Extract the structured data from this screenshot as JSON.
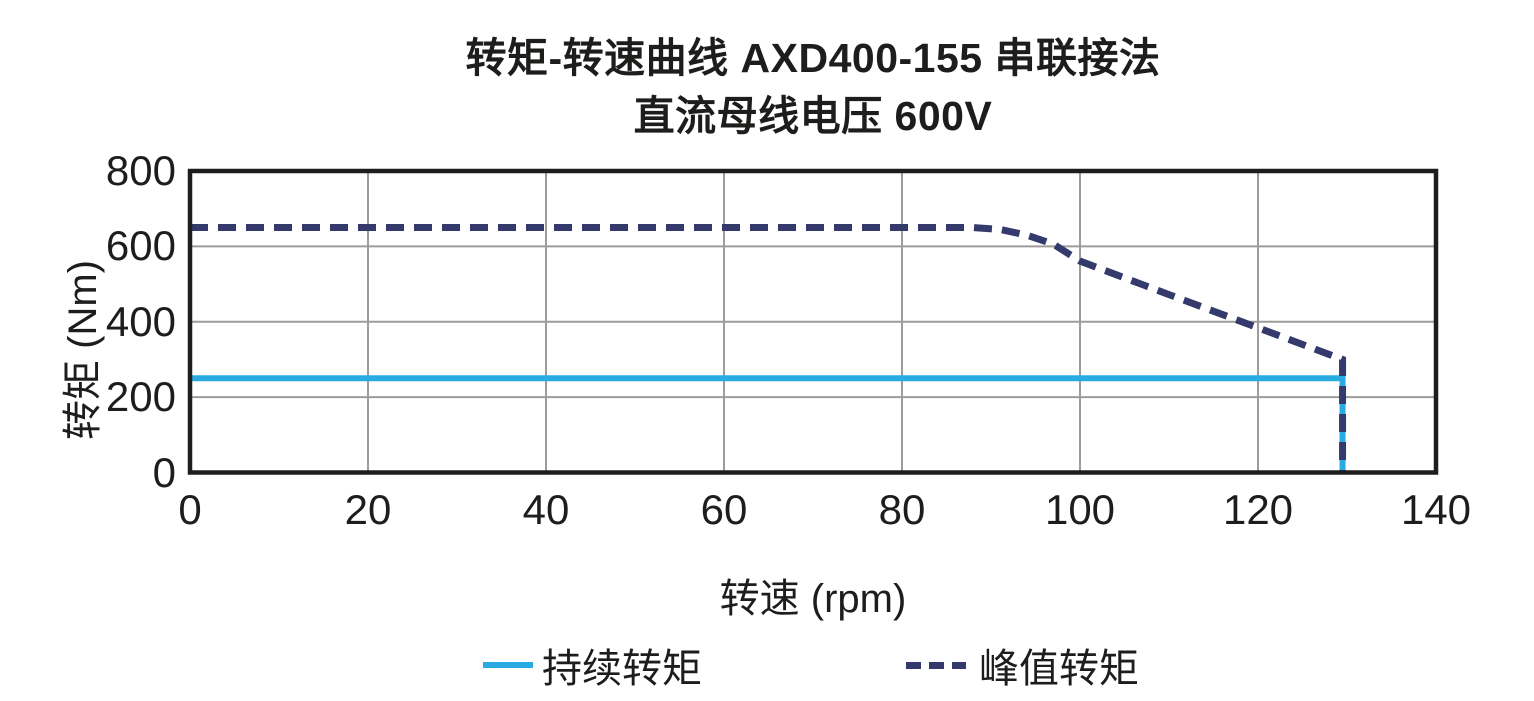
{
  "chart_data": {
    "type": "line",
    "title_line1": "转矩-转速曲线 AXD400-155 串联接法",
    "title_line2": "直流母线电压 600V",
    "xlabel": "转速 (rpm)",
    "ylabel": "转矩 (Nm)",
    "xlim": [
      0,
      140
    ],
    "ylim": [
      0,
      800
    ],
    "x_ticks": [
      0,
      20,
      40,
      60,
      80,
      100,
      120,
      140
    ],
    "y_ticks": [
      0,
      200,
      400,
      600,
      800
    ],
    "grid": true,
    "legend_position": "bottom",
    "colors": {
      "grid": "#9c9c9b",
      "border": "#1d1d1b",
      "text": "#1d1d1b",
      "continuous": "#29abe2",
      "peak": "#343a6b"
    },
    "series": [
      {
        "name": "持续转矩",
        "style": "solid",
        "color": "#29abe2",
        "points": [
          [
            0,
            250
          ],
          [
            129.5,
            250
          ],
          [
            129.5,
            0
          ]
        ]
      },
      {
        "name": "峰值转矩",
        "style": "dashed",
        "color": "#343a6b",
        "points": [
          [
            0,
            650
          ],
          [
            88,
            650
          ],
          [
            91,
            645
          ],
          [
            94,
            630
          ],
          [
            97,
            606
          ],
          [
            100,
            561
          ],
          [
            110,
            472
          ],
          [
            120,
            384
          ],
          [
            129.5,
            300
          ],
          [
            129.5,
            0
          ]
        ]
      }
    ]
  }
}
